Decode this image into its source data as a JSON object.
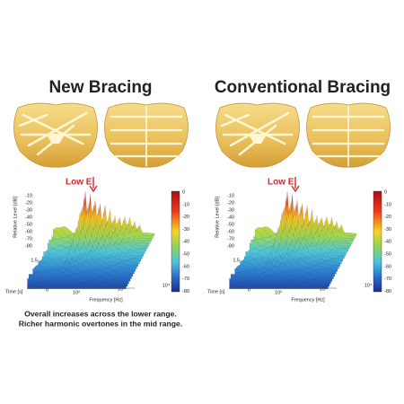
{
  "panels": [
    {
      "title": "New Bracing",
      "annotation": "Low E",
      "y_axis_label": "Relative Level [dB]",
      "x_axis_label": "Frequency [Hz]",
      "time_axis_label": "Time [s]",
      "y_ticks": [
        "-10",
        "-20",
        "-30",
        "-40",
        "-50",
        "-60",
        "-70",
        "-80"
      ],
      "colorbar_ticks": [
        "0",
        "-10",
        "-20",
        "-30",
        "-40",
        "-50",
        "-60",
        "-70",
        "-80"
      ],
      "time_ticks": [
        "1.5",
        "1",
        "0.5",
        "0"
      ],
      "freq_ticks": [
        "10²",
        "10³",
        "10⁴"
      ]
    },
    {
      "title": "Conventional Bracing",
      "annotation": "Low E",
      "y_axis_label": "Relative Level [dB]",
      "x_axis_label": "Frequency [Hz]",
      "time_axis_label": "Time [s]",
      "y_ticks": [
        "-10",
        "-20",
        "-30",
        "-40",
        "-50",
        "-60",
        "-70",
        "-80"
      ],
      "colorbar_ticks": [
        "0",
        "-10",
        "-20",
        "-30",
        "-40",
        "-50",
        "-60",
        "-70",
        "-80"
      ],
      "time_ticks": [
        "1.5",
        "1",
        "0.5",
        "0"
      ],
      "freq_ticks": [
        "10²",
        "10³",
        "10⁴"
      ]
    }
  ],
  "caption": [
    "Overall increases across the lower range.",
    "Richer harmonic overtones in the mid range."
  ]
}
